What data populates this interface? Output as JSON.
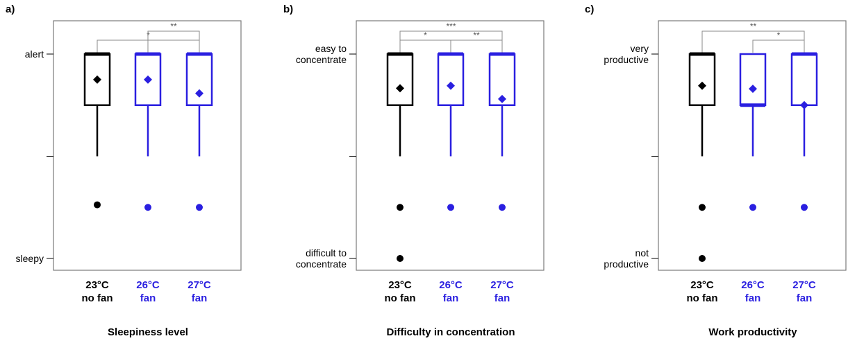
{
  "colors": {
    "control": "#000000",
    "fan": "#2a1fe0",
    "frame": "#7a7a7a",
    "bracket": "#8a8a8a"
  },
  "chart_data": [
    {
      "type": "box",
      "panel_label": "a)",
      "title": "Sleepiness level",
      "y_scale": [
        1,
        5
      ],
      "yticks": [
        {
          "value": 1,
          "lines": [
            "sleepy"
          ]
        },
        {
          "value": 3,
          "lines": []
        },
        {
          "value": 5,
          "lines": [
            "alert"
          ]
        }
      ],
      "categories": [
        {
          "lines": [
            "23°C",
            "no fan"
          ],
          "color": "#000000"
        },
        {
          "lines": [
            "26°C",
            "fan"
          ],
          "color": "#2a1fe0"
        },
        {
          "lines": [
            "27°C",
            "fan"
          ],
          "color": "#2a1fe0"
        }
      ],
      "boxes": [
        {
          "q1": 4,
          "median": 5,
          "q3": 5,
          "whisker_low": 3,
          "whisker_high": 5,
          "mean": 4.5,
          "outliers": [
            2.05
          ]
        },
        {
          "q1": 4,
          "median": 5,
          "q3": 5,
          "whisker_low": 3,
          "whisker_high": 5,
          "mean": 4.5,
          "outliers": [
            2.0
          ]
        },
        {
          "q1": 4,
          "median": 5,
          "q3": 5,
          "whisker_low": 3,
          "whisker_high": 5,
          "mean": 4.23,
          "outliers": [
            2.0
          ]
        }
      ],
      "significance": [
        {
          "from": 0,
          "to": 2,
          "label": "*",
          "level": 0
        },
        {
          "from": 1,
          "to": 2,
          "label": "**",
          "level": 1
        }
      ]
    },
    {
      "type": "box",
      "panel_label": "b)",
      "title": "Difficulty in concentration",
      "y_scale": [
        1,
        5
      ],
      "yticks": [
        {
          "value": 1,
          "lines": [
            "difficult to",
            "concentrate"
          ]
        },
        {
          "value": 3,
          "lines": []
        },
        {
          "value": 5,
          "lines": [
            "easy to",
            "concentrate"
          ]
        }
      ],
      "categories": [
        {
          "lines": [
            "23°C",
            "no fan"
          ],
          "color": "#000000"
        },
        {
          "lines": [
            "26°C",
            "fan"
          ],
          "color": "#2a1fe0"
        },
        {
          "lines": [
            "27°C",
            "fan"
          ],
          "color": "#2a1fe0"
        }
      ],
      "boxes": [
        {
          "q1": 4,
          "median": 5,
          "q3": 5,
          "whisker_low": 3,
          "whisker_high": 5,
          "mean": 4.33,
          "outliers": [
            2.0,
            1.0
          ]
        },
        {
          "q1": 4,
          "median": 5,
          "q3": 5,
          "whisker_low": 3,
          "whisker_high": 5,
          "mean": 4.38,
          "outliers": [
            2.0
          ]
        },
        {
          "q1": 4,
          "median": 5,
          "q3": 5,
          "whisker_low": 3,
          "whisker_high": 5,
          "mean": 4.12,
          "outliers": [
            2.0
          ]
        }
      ],
      "significance": [
        {
          "from": 0,
          "to": 1,
          "label": "*",
          "level": 0
        },
        {
          "from": 1,
          "to": 2,
          "label": "**",
          "level": 0
        },
        {
          "from": 0,
          "to": 2,
          "label": "***",
          "level": 1
        }
      ]
    },
    {
      "type": "box",
      "panel_label": "c)",
      "title": "Work productivity",
      "y_scale": [
        1,
        5
      ],
      "yticks": [
        {
          "value": 1,
          "lines": [
            "not",
            "productive"
          ]
        },
        {
          "value": 3,
          "lines": []
        },
        {
          "value": 5,
          "lines": [
            "very",
            "productive"
          ]
        }
      ],
      "categories": [
        {
          "lines": [
            "23°C",
            "no fan"
          ],
          "color": "#000000"
        },
        {
          "lines": [
            "26°C",
            "fan"
          ],
          "color": "#2a1fe0"
        },
        {
          "lines": [
            "27°C",
            "fan"
          ],
          "color": "#2a1fe0"
        }
      ],
      "boxes": [
        {
          "q1": 4,
          "median": 5,
          "q3": 5,
          "whisker_low": 3,
          "whisker_high": 5,
          "mean": 4.38,
          "outliers": [
            2.0,
            1.0
          ]
        },
        {
          "q1": 4,
          "median": 4,
          "q3": 5,
          "whisker_low": 3,
          "whisker_high": 5,
          "mean": 4.32,
          "outliers": [
            2.0
          ]
        },
        {
          "q1": 4,
          "median": 5,
          "q3": 5,
          "whisker_low": 3,
          "whisker_high": 5,
          "mean": 4.0,
          "outliers": [
            2.0
          ]
        }
      ],
      "significance": [
        {
          "from": 1,
          "to": 2,
          "label": "*",
          "level": 0
        },
        {
          "from": 0,
          "to": 2,
          "label": "**",
          "level": 1
        }
      ]
    }
  ]
}
